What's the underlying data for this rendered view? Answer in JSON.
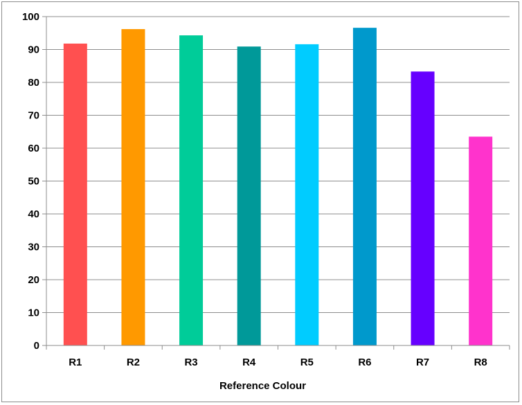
{
  "chart_data": {
    "type": "bar",
    "title": "",
    "xlabel": "Reference Colour",
    "ylabel": "",
    "categories": [
      "R1",
      "R2",
      "R3",
      "R4",
      "R5",
      "R6",
      "R7",
      "R8"
    ],
    "values": [
      91.8,
      96.2,
      94.3,
      90.9,
      91.6,
      96.6,
      83.3,
      63.5
    ],
    "colors": [
      "#ff5050",
      "#ff9900",
      "#00cc99",
      "#009999",
      "#00ccff",
      "#0099cc",
      "#6600ff",
      "#ff33cc"
    ],
    "ylim": [
      0,
      100
    ],
    "yticks": [
      0,
      10,
      20,
      30,
      40,
      50,
      60,
      70,
      80,
      90,
      100
    ],
    "grid": true,
    "legend": "none"
  }
}
